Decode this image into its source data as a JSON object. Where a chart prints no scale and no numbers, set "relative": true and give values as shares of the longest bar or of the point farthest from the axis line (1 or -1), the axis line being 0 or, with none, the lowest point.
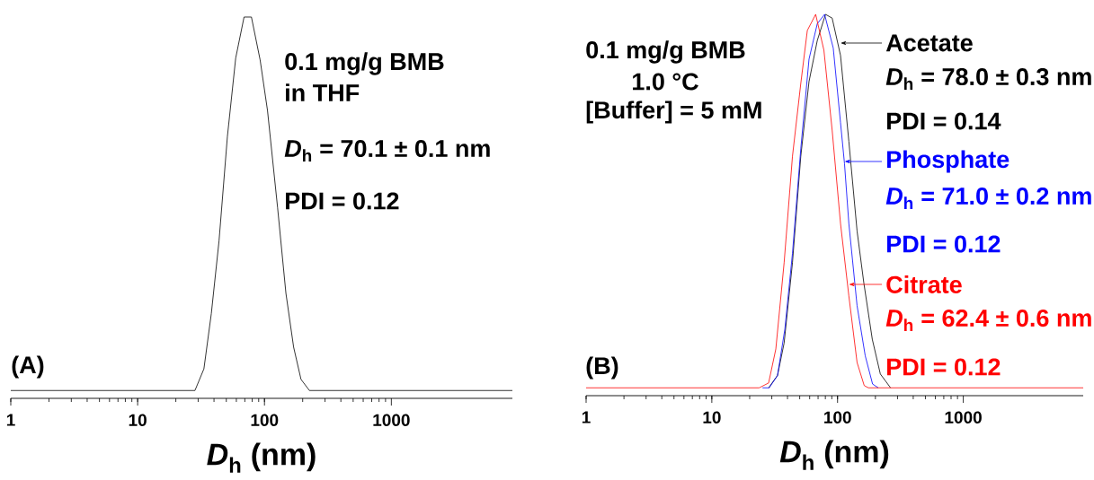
{
  "chart_data": [
    {
      "type": "line",
      "relative": true,
      "log": "x",
      "xlim": [
        1,
        9000
      ],
      "xticks": [
        1,
        10,
        100,
        1000
      ],
      "xlabel": "*D*$_{h}$ (nm)",
      "series": [
        {
          "color": "#000000",
          "x": [
            1,
            28.3,
            33.3,
            38.1,
            43.8,
            51,
            59.3,
            69,
            78.9,
            92.4,
            105.6,
            126.8,
            147.6,
            169.7,
            194,
            226,
            9000
          ],
          "values": [
            0,
            0,
            0.058,
            0.206,
            0.4,
            0.68,
            0.89,
            1,
            1,
            0.885,
            0.75,
            0.49,
            0.26,
            0.116,
            0.03,
            0,
            0
          ]
        }
      ],
      "annotations": [
        "(A)",
        "0.1 mg/g BMB",
        "in THF",
        "*D*$_{h}$ = 70.1 ± 0.1 nm",
        "PDI = 0.12"
      ]
    },
    {
      "type": "line",
      "relative": true,
      "log": "x",
      "legend": "top right",
      "xlim": [
        1,
        9000
      ],
      "xticks": [
        1,
        10,
        100,
        1000
      ],
      "xlabel": "*D*$_{h}$ (nm)",
      "series": [
        {
          "name": "Acetate",
          "color": "#000000",
          "x": [
            28.3,
            33.3,
            37.6,
            43.8,
            51,
            59.3,
            69,
            80.2,
            90.6,
            105.6,
            123,
            143,
            162,
            189,
            219,
            264
          ],
          "values": [
            0,
            0.033,
            0.12,
            0.335,
            0.62,
            0.82,
            0.93,
            1,
            0.99,
            0.89,
            0.66,
            0.42,
            0.28,
            0.13,
            0.037,
            0
          ]
        },
        {
          "name": "Phosphate",
          "color": "#0000ff",
          "x": [
            25.3,
            28.6,
            33.3,
            38.1,
            43.8,
            51,
            59.3,
            69,
            78.9,
            92.4,
            105.6,
            113.6,
            123,
            143,
            166,
            190,
            211
          ],
          "values": [
            0,
            0,
            0.033,
            0.157,
            0.36,
            0.64,
            0.88,
            0.975,
            1,
            0.91,
            0.71,
            0.6,
            0.44,
            0.22,
            0.086,
            0.01,
            0
          ]
        },
        {
          "name": "Citrate",
          "color": "#ff0000",
          "x": [
            1,
            23.8,
            28.3,
            32.3,
            37.6,
            43.8,
            51,
            57.5,
            67,
            77.9,
            90.6,
            105.6,
            123,
            143,
            163,
            176,
            9000
          ],
          "values": [
            0,
            0,
            0.013,
            0.104,
            0.335,
            0.62,
            0.815,
            0.957,
            1,
            0.904,
            0.69,
            0.44,
            0.246,
            0.068,
            0.006,
            0,
            0
          ]
        }
      ],
      "annotations": [
        "(B)",
        "0.1 mg/g BMB",
        "1.0 °C",
        "[Buffer] = 5 mM",
        "*D*$_{h}$ = 78.0 ± 0.3 nm",
        "PDI = 0.14",
        "*D*$_{h}$ = 71.0 ± 0.2 nm",
        "PDI = 0.12",
        "*D*$_{h}$ = 62.4 ± 0.6 nm",
        "PDI = 0.12"
      ]
    }
  ]
}
